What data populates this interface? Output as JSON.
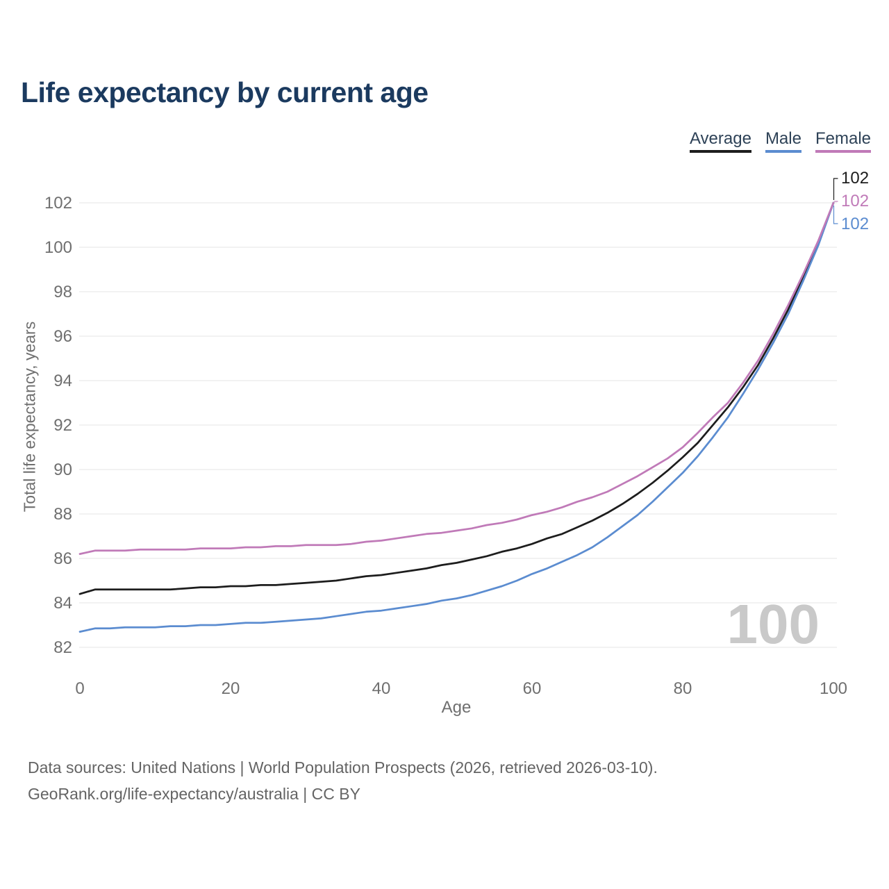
{
  "header": {
    "title": "Life expectancy by current age"
  },
  "footer": {
    "line1": "Data sources: United Nations | World Population Prospects (2026, retrieved 2026-03-10).",
    "line2": "GeoRank.org/life-expectancy/australia | CC BY"
  },
  "colors": {
    "title": "#1b3a5f",
    "legend_text": "#2e4257",
    "axis_text": "#6f6f6f",
    "gridline": "#e9e9e9",
    "watermark": "#c9c9c9"
  },
  "chart_data": {
    "type": "line",
    "title": "Life expectancy by current age",
    "xlabel": "Age",
    "ylabel": "Total life expectancy, years",
    "xlim": [
      0,
      100
    ],
    "ylim": [
      82,
      103
    ],
    "x_ticks": [
      0,
      20,
      40,
      60,
      80,
      100
    ],
    "y_ticks": [
      82,
      84,
      86,
      88,
      90,
      92,
      94,
      96,
      98,
      100,
      102
    ],
    "grid": "horizontal",
    "legend_position": "top-right",
    "watermark": "100",
    "x": [
      0,
      2,
      4,
      6,
      8,
      10,
      12,
      14,
      16,
      18,
      20,
      22,
      24,
      26,
      28,
      30,
      32,
      34,
      36,
      38,
      40,
      42,
      44,
      46,
      48,
      50,
      52,
      54,
      56,
      58,
      60,
      62,
      64,
      66,
      68,
      70,
      72,
      74,
      76,
      78,
      80,
      82,
      84,
      86,
      88,
      90,
      92,
      94,
      96,
      98,
      100
    ],
    "series": [
      {
        "name": "Average",
        "color": "#1d1d1d",
        "end_label": "102",
        "values": [
          84.4,
          84.6,
          84.6,
          84.6,
          84.6,
          84.6,
          84.6,
          84.65,
          84.7,
          84.7,
          84.75,
          84.75,
          84.8,
          84.8,
          84.85,
          84.9,
          84.95,
          85.0,
          85.1,
          85.2,
          85.25,
          85.35,
          85.45,
          85.55,
          85.7,
          85.8,
          85.95,
          86.1,
          86.3,
          86.45,
          86.65,
          86.9,
          87.1,
          87.4,
          87.7,
          88.05,
          88.45,
          88.9,
          89.4,
          89.95,
          90.55,
          91.2,
          92.0,
          92.8,
          93.7,
          94.7,
          95.9,
          97.2,
          98.7,
          100.2,
          102
        ]
      },
      {
        "name": "Male",
        "color": "#5b8cd0",
        "end_label": "102",
        "values": [
          82.7,
          82.85,
          82.85,
          82.9,
          82.9,
          82.9,
          82.95,
          82.95,
          83.0,
          83.0,
          83.05,
          83.1,
          83.1,
          83.15,
          83.2,
          83.25,
          83.3,
          83.4,
          83.5,
          83.6,
          83.65,
          83.75,
          83.85,
          83.95,
          84.1,
          84.2,
          84.35,
          84.55,
          84.75,
          85.0,
          85.3,
          85.55,
          85.85,
          86.15,
          86.5,
          86.95,
          87.45,
          87.95,
          88.55,
          89.2,
          89.85,
          90.6,
          91.45,
          92.35,
          93.4,
          94.5,
          95.7,
          97.0,
          98.5,
          100.1,
          102
        ]
      },
      {
        "name": "Female",
        "color": "#c07ab8",
        "end_label": "102",
        "values": [
          86.2,
          86.35,
          86.35,
          86.35,
          86.4,
          86.4,
          86.4,
          86.4,
          86.45,
          86.45,
          86.45,
          86.5,
          86.5,
          86.55,
          86.55,
          86.6,
          86.6,
          86.6,
          86.65,
          86.75,
          86.8,
          86.9,
          87.0,
          87.1,
          87.15,
          87.25,
          87.35,
          87.5,
          87.6,
          87.75,
          87.95,
          88.1,
          88.3,
          88.55,
          88.75,
          89.0,
          89.35,
          89.7,
          90.1,
          90.5,
          91.0,
          91.65,
          92.35,
          93.0,
          93.9,
          94.9,
          96.1,
          97.4,
          98.8,
          100.3,
          102
        ]
      }
    ]
  }
}
